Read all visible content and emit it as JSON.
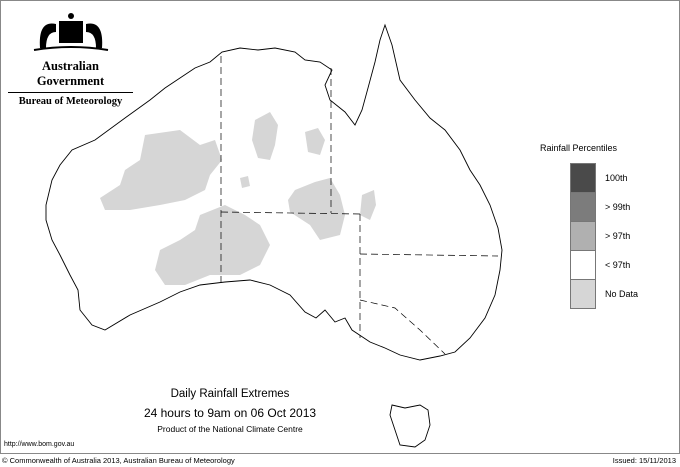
{
  "header": {
    "government": "Australian Government",
    "bureau": "Bureau of Meteorology"
  },
  "legend": {
    "title": "Rainfall Percentiles",
    "items": [
      {
        "label": "100th",
        "color": "#4a4a4a"
      },
      {
        "label": "> 99th",
        "color": "#7c7c7c"
      },
      {
        "label": "> 97th",
        "color": "#b0b0b0"
      },
      {
        "label": "< 97th",
        "color": "#ffffff"
      },
      {
        "label": "No Data",
        "color": "#d6d6d6"
      }
    ]
  },
  "map": {
    "region": "Australia",
    "shaded_category": "No Data"
  },
  "titles": {
    "title": "Daily Rainfall Extremes",
    "period": "24 hours to 9am on 06 Oct 2013",
    "product": "Product of the National Climate Centre"
  },
  "footer": {
    "url": "http://www.bom.gov.au",
    "copyright": "© Commonwealth of Australia 2013, Australian Bureau of Meteorology",
    "issued": "Issued: 15/11/2013"
  }
}
